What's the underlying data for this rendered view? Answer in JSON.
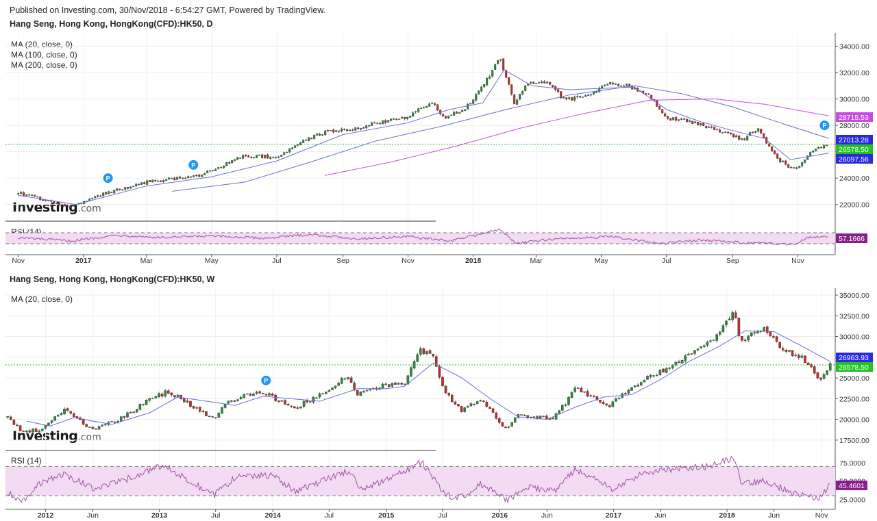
{
  "header": {
    "published": "Published on Investing.com, 30/Nov/2018 - 6:54:27 GMT, Powered by TradingView."
  },
  "watermark": {
    "brand": "Investing",
    "suffix": ".com"
  },
  "chart_data": [
    {
      "type": "candlestick",
      "title": "Hang Seng, Hong Kong, HongKong(CFD):HK50, D",
      "indicators": [
        "MA (20, close, 0)",
        "MA (100, close, 0)",
        "MA (200, close, 0)"
      ],
      "x_ticks": [
        "Nov",
        "2017",
        "Mar",
        "May",
        "Jul",
        "Sep",
        "Nov",
        "2018",
        "Mar",
        "May",
        "Jul",
        "Sep",
        "Nov"
      ],
      "y_ticks": [
        "22000.00",
        "24000.00",
        "26000.00",
        "28000.00",
        "30000.00",
        "32000.00",
        "34000.00"
      ],
      "ylim": [
        21000,
        34800
      ],
      "grid": true,
      "close_path": [
        [
          "2016-11-01",
          22900
        ],
        [
          "2016-12-20",
          21800
        ],
        [
          "2017-01-20",
          22800
        ],
        [
          "2017-03-01",
          23700
        ],
        [
          "2017-04-20",
          24200
        ],
        [
          "2017-06-01",
          25700
        ],
        [
          "2017-07-01",
          25600
        ],
        [
          "2017-07-25",
          26800
        ],
        [
          "2017-08-15",
          27500
        ],
        [
          "2017-09-15",
          27800
        ],
        [
          "2017-10-10",
          28300
        ],
        [
          "2017-11-01",
          28600
        ],
        [
          "2017-11-22",
          29800
        ],
        [
          "2017-12-05",
          28600
        ],
        [
          "2017-12-25",
          29300
        ],
        [
          "2018-01-10",
          31000
        ],
        [
          "2018-01-26",
          33100
        ],
        [
          "2018-02-09",
          29600
        ],
        [
          "2018-02-20",
          31200
        ],
        [
          "2018-03-10",
          31300
        ],
        [
          "2018-03-28",
          29900
        ],
        [
          "2018-04-20",
          30400
        ],
        [
          "2018-05-10",
          31200
        ],
        [
          "2018-05-25",
          31000
        ],
        [
          "2018-06-15",
          30300
        ],
        [
          "2018-06-30",
          28500
        ],
        [
          "2018-07-20",
          28400
        ],
        [
          "2018-08-10",
          27800
        ],
        [
          "2018-08-25",
          27500
        ],
        [
          "2018-09-10",
          26900
        ],
        [
          "2018-09-25",
          27800
        ],
        [
          "2018-10-12",
          25500
        ],
        [
          "2018-10-29",
          24600
        ],
        [
          "2018-11-12",
          25900
        ],
        [
          "2018-11-30",
          26578
        ]
      ],
      "ma_series": [
        {
          "name": "MA (20, close, 0)",
          "color": "#6b6bdb",
          "points": [
            [
              "2016-11-01",
              22700
            ],
            [
              "2016-12-25",
              22000
            ],
            [
              "2017-03-01",
              23400
            ],
            [
              "2017-05-01",
              24100
            ],
            [
              "2017-07-01",
              25300
            ],
            [
              "2017-09-01",
              27300
            ],
            [
              "2017-11-01",
              28200
            ],
            [
              "2017-12-10",
              29200
            ],
            [
              "2018-01-10",
              29700
            ],
            [
              "2018-01-30",
              32200
            ],
            [
              "2018-02-25",
              31000
            ],
            [
              "2018-04-01",
              30700
            ],
            [
              "2018-05-01",
              30800
            ],
            [
              "2018-06-01",
              30900
            ],
            [
              "2018-07-01",
              29200
            ],
            [
              "2018-08-01",
              28300
            ],
            [
              "2018-09-01",
              27600
            ],
            [
              "2018-10-01",
              27000
            ],
            [
              "2018-10-25",
              25400
            ],
            [
              "2018-11-30",
              25900
            ]
          ]
        },
        {
          "name": "MA (100, close, 0)",
          "color": "#6b6bdb",
          "points": [
            [
              "2017-03-25",
              23000
            ],
            [
              "2017-06-01",
              23700
            ],
            [
              "2017-08-01",
              25200
            ],
            [
              "2017-10-01",
              26800
            ],
            [
              "2017-12-01",
              27900
            ],
            [
              "2018-02-01",
              29200
            ],
            [
              "2018-04-01",
              30300
            ],
            [
              "2018-06-01",
              31000
            ],
            [
              "2018-07-15",
              30400
            ],
            [
              "2018-09-01",
              29400
            ],
            [
              "2018-10-15",
              28200
            ],
            [
              "2018-11-30",
              27013
            ]
          ]
        },
        {
          "name": "MA (200, close, 0)",
          "color": "#c74ce0",
          "points": [
            [
              "2017-08-15",
              24200
            ],
            [
              "2017-10-15",
              25200
            ],
            [
              "2017-12-15",
              26400
            ],
            [
              "2018-02-15",
              27800
            ],
            [
              "2018-04-15",
              28900
            ],
            [
              "2018-06-15",
              29900
            ],
            [
              "2018-08-15",
              30000
            ],
            [
              "2018-10-01",
              29600
            ],
            [
              "2018-11-30",
              28715
            ]
          ]
        }
      ],
      "markers": [
        [
          "2017-01-24",
          24000
        ],
        [
          "2017-04-14",
          25000
        ],
        [
          "2018-11-26",
          28000
        ]
      ],
      "price_labels": [
        {
          "value": "28715.53",
          "color": "#c74ce0"
        },
        {
          "value": "27013.28",
          "color": "#2a2ae0"
        },
        {
          "value": "26578.50",
          "color": "#22c322"
        },
        {
          "value": "26097.56",
          "color": "#2a2ae0"
        }
      ],
      "current_price": 26578.5,
      "rsi": {
        "label": "RSI (14)",
        "value": "57.1666",
        "upper": 70,
        "lower": 30
      },
      "rsi_path": [
        [
          "2016-11-01",
          52
        ],
        [
          "2016-12-20",
          40
        ],
        [
          "2017-02-01",
          62
        ],
        [
          "2017-03-15",
          52
        ],
        [
          "2017-05-01",
          58
        ],
        [
          "2017-06-20",
          50
        ],
        [
          "2017-08-01",
          64
        ],
        [
          "2017-09-15",
          48
        ],
        [
          "2017-11-01",
          56
        ],
        [
          "2017-12-10",
          40
        ],
        [
          "2018-01-26",
          82
        ],
        [
          "2018-02-10",
          32
        ],
        [
          "2018-03-20",
          48
        ],
        [
          "2018-05-10",
          56
        ],
        [
          "2018-06-25",
          30
        ],
        [
          "2018-08-01",
          44
        ],
        [
          "2018-09-10",
          34
        ],
        [
          "2018-10-29",
          28
        ],
        [
          "2018-11-10",
          54
        ],
        [
          "2018-11-30",
          57
        ]
      ]
    },
    {
      "type": "candlestick",
      "title": "Hang Seng, Hong Kong, HongKong(CFD):HK50, W",
      "indicators": [
        "MA (20, close, 0)"
      ],
      "x_ticks": [
        "2012",
        "Jun",
        "2013",
        "Jul",
        "2014",
        "Jul",
        "2015",
        "Jul",
        "2016",
        "Jun",
        "2017",
        "Jun",
        "2018",
        "Jun",
        "Nov"
      ],
      "y_ticks": [
        "17500.00",
        "20000.00",
        "22500.00",
        "25000.00",
        "27500.00",
        "30000.00",
        "32500.00",
        "35000.00"
      ],
      "ylim": [
        16500,
        35500
      ],
      "grid": true,
      "close_path": [
        [
          "2011-09-01",
          20500
        ],
        [
          "2011-10-15",
          18500
        ],
        [
          "2011-12-15",
          18700
        ],
        [
          "2012-03-01",
          21200
        ],
        [
          "2012-06-01",
          18800
        ],
        [
          "2012-09-01",
          20200
        ],
        [
          "2012-12-01",
          22400
        ],
        [
          "2013-02-01",
          23400
        ],
        [
          "2013-06-25",
          20000
        ],
        [
          "2013-08-01",
          21800
        ],
        [
          "2013-10-01",
          23000
        ],
        [
          "2013-12-01",
          23300
        ],
        [
          "2014-03-10",
          21300
        ],
        [
          "2014-05-01",
          22400
        ],
        [
          "2014-09-01",
          25200
        ],
        [
          "2014-10-01",
          23100
        ],
        [
          "2015-01-01",
          24200
        ],
        [
          "2015-03-01",
          24300
        ],
        [
          "2015-04-20",
          28400
        ],
        [
          "2015-06-01",
          27500
        ],
        [
          "2015-07-08",
          23400
        ],
        [
          "2015-09-01",
          21000
        ],
        [
          "2015-11-01",
          22600
        ],
        [
          "2016-01-20",
          18800
        ],
        [
          "2016-03-01",
          20500
        ],
        [
          "2016-06-25",
          20200
        ],
        [
          "2016-09-01",
          23700
        ],
        [
          "2016-12-20",
          21600
        ],
        [
          "2017-03-01",
          24000
        ],
        [
          "2017-06-01",
          25800
        ],
        [
          "2017-09-01",
          27800
        ],
        [
          "2017-11-20",
          29800
        ],
        [
          "2018-01-26",
          33100
        ],
        [
          "2018-02-09",
          29600
        ],
        [
          "2018-05-01",
          31000
        ],
        [
          "2018-06-25",
          28500
        ],
        [
          "2018-09-01",
          27500
        ],
        [
          "2018-10-26",
          24600
        ],
        [
          "2018-11-30",
          26578
        ]
      ],
      "ma_series": [
        {
          "name": "MA (20, close, 0)",
          "color": "#6b6bdb",
          "points": [
            [
              "2011-11-01",
              19800
            ],
            [
              "2012-01-15",
              19200
            ],
            [
              "2012-04-01",
              20200
            ],
            [
              "2012-08-01",
              19400
            ],
            [
              "2012-12-01",
              20800
            ],
            [
              "2013-03-01",
              22700
            ],
            [
              "2013-06-01",
              22200
            ],
            [
              "2013-09-01",
              21700
            ],
            [
              "2013-12-01",
              22800
            ],
            [
              "2014-03-01",
              22500
            ],
            [
              "2014-06-01",
              22200
            ],
            [
              "2014-10-01",
              23700
            ],
            [
              "2015-01-01",
              23700
            ],
            [
              "2015-03-01",
              24000
            ],
            [
              "2015-06-01",
              26800
            ],
            [
              "2015-09-01",
              25000
            ],
            [
              "2015-12-01",
              22500
            ],
            [
              "2016-03-01",
              20300
            ],
            [
              "2016-06-01",
              20000
            ],
            [
              "2016-09-01",
              21500
            ],
            [
              "2016-12-01",
              22700
            ],
            [
              "2017-03-01",
              23000
            ],
            [
              "2017-06-01",
              24800
            ],
            [
              "2017-09-01",
              27000
            ],
            [
              "2017-12-01",
              28700
            ],
            [
              "2018-03-01",
              30700
            ],
            [
              "2018-06-01",
              30600
            ],
            [
              "2018-09-01",
              28800
            ],
            [
              "2018-11-30",
              26964
            ]
          ]
        }
      ],
      "markers": [
        [
          "2013-12-10",
          24700
        ]
      ],
      "price_labels": [
        {
          "value": "26963.93",
          "color": "#2a2ae0"
        },
        {
          "value": "26578.50",
          "color": "#22c322"
        }
      ],
      "current_price": 26578.5,
      "rsi": {
        "label": "RSI (14)",
        "value": "45.4601",
        "y_ticks": [
          "25.0000",
          "50.0000",
          "75.0000"
        ],
        "upper": 70,
        "lower": 30
      },
      "rsi_path": [
        [
          "2011-09-01",
          34
        ],
        [
          "2011-10-20",
          22
        ],
        [
          "2011-12-01",
          44
        ],
        [
          "2012-03-01",
          60
        ],
        [
          "2012-06-01",
          40
        ],
        [
          "2012-09-01",
          50
        ],
        [
          "2013-01-15",
          72
        ],
        [
          "2013-06-25",
          30
        ],
        [
          "2013-09-01",
          55
        ],
        [
          "2014-01-01",
          58
        ],
        [
          "2014-03-15",
          36
        ],
        [
          "2014-09-01",
          64
        ],
        [
          "2014-10-15",
          38
        ],
        [
          "2015-01-15",
          54
        ],
        [
          "2015-04-25",
          76
        ],
        [
          "2015-07-10",
          30
        ],
        [
          "2015-09-01",
          28
        ],
        [
          "2015-11-01",
          46
        ],
        [
          "2016-01-25",
          24
        ],
        [
          "2016-04-01",
          42
        ],
        [
          "2016-06-25",
          36
        ],
        [
          "2016-09-01",
          66
        ],
        [
          "2017-01-01",
          38
        ],
        [
          "2017-04-01",
          60
        ],
        [
          "2017-08-01",
          68
        ],
        [
          "2017-11-01",
          70
        ],
        [
          "2018-01-26",
          82
        ],
        [
          "2018-02-15",
          46
        ],
        [
          "2018-05-01",
          50
        ],
        [
          "2018-08-01",
          34
        ],
        [
          "2018-10-25",
          26
        ],
        [
          "2018-11-30",
          45
        ]
      ]
    }
  ]
}
